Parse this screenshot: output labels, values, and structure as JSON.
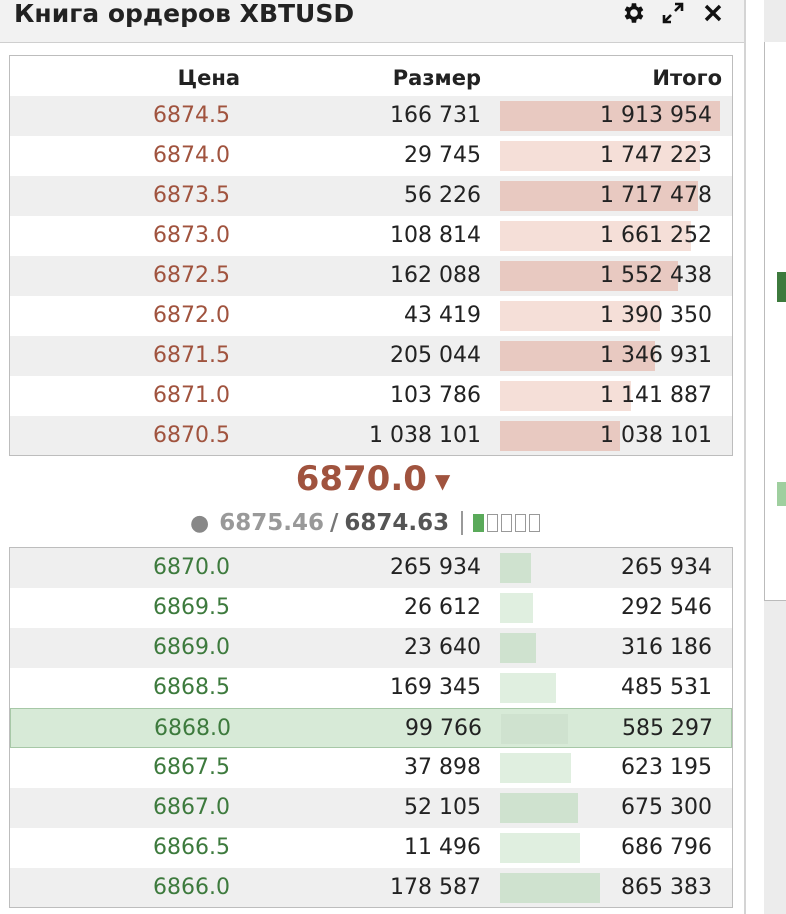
{
  "window": {
    "title": "Книга ордеров XBTUSD",
    "icons": [
      "gear-icon",
      "expand-icon",
      "close-icon"
    ]
  },
  "headers": {
    "price": "Цена",
    "size": "Размер",
    "total": "Итого"
  },
  "asks": [
    {
      "price": "6874.5",
      "size": "166 731",
      "total": "1 913 954",
      "bar_fraction": 0.99
    },
    {
      "price": "6874.0",
      "size": "29 745",
      "total": "1 747 223",
      "bar_fraction": 0.9
    },
    {
      "price": "6873.5",
      "size": "56 226",
      "total": "1 717 478",
      "bar_fraction": 0.89
    },
    {
      "price": "6873.0",
      "size": "108 814",
      "total": "1 661 252",
      "bar_fraction": 0.86
    },
    {
      "price": "6872.5",
      "size": "162 088",
      "total": "1 552 438",
      "bar_fraction": 0.8
    },
    {
      "price": "6872.0",
      "size": "43 419",
      "total": "1 390 350",
      "bar_fraction": 0.72
    },
    {
      "price": "6871.5",
      "size": "205 044",
      "total": "1 346 931",
      "bar_fraction": 0.7
    },
    {
      "price": "6871.0",
      "size": "103 786",
      "total": "1 141 887",
      "bar_fraction": 0.59
    },
    {
      "price": "6870.5",
      "size": "1 038 101",
      "total": "1 038 101",
      "bar_fraction": 0.54
    }
  ],
  "last_price": "6870.0",
  "index_price": "6875.46",
  "mark_price": "6874.63",
  "separator": "/",
  "signal_level": 1,
  "signal_total": 5,
  "bids": [
    {
      "price": "6870.0",
      "size": "265 934",
      "total": "265 934",
      "bar_fraction": 0.14
    },
    {
      "price": "6869.5",
      "size": "26 612",
      "total": "292 546",
      "bar_fraction": 0.15
    },
    {
      "price": "6869.0",
      "size": "23 640",
      "total": "316 186",
      "bar_fraction": 0.16
    },
    {
      "price": "6868.5",
      "size": "169 345",
      "total": "485 531",
      "bar_fraction": 0.25
    },
    {
      "price": "6868.0",
      "size": "99 766",
      "total": "585 297",
      "bar_fraction": 0.3,
      "highlighted": true
    },
    {
      "price": "6867.5",
      "size": "37 898",
      "total": "623 195",
      "bar_fraction": 0.32
    },
    {
      "price": "6867.0",
      "size": "52 105",
      "total": "675 300",
      "bar_fraction": 0.35
    },
    {
      "price": "6866.5",
      "size": "11 496",
      "total": "686 796",
      "bar_fraction": 0.36
    },
    {
      "price": "6866.0",
      "size": "178 587",
      "total": "865 383",
      "bar_fraction": 0.45
    }
  ],
  "colors": {
    "ask": "#a0533e",
    "bid": "#3d7a3d",
    "highlight": "#d7ead7"
  }
}
